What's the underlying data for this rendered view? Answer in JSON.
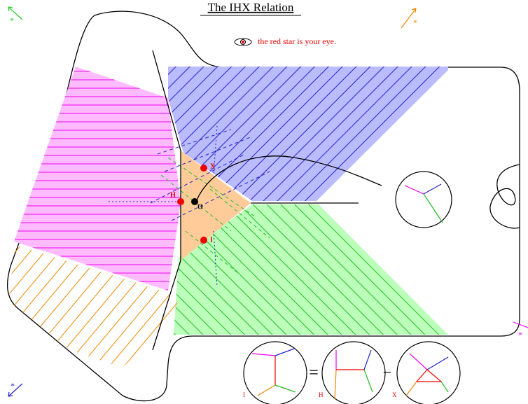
{
  "title": "The IHX Relation",
  "legend": "the red star is your eye.",
  "points": [
    {
      "label": "X"
    },
    {
      "label": "H"
    },
    {
      "label": "O"
    },
    {
      "label": "I"
    }
  ],
  "equation": {
    "terms": [
      {
        "label": "I"
      },
      {
        "label": "H"
      },
      {
        "label": "X"
      }
    ],
    "equals": "=",
    "minus": "−"
  },
  "corners": [
    "*",
    "*",
    "*",
    "*"
  ]
}
